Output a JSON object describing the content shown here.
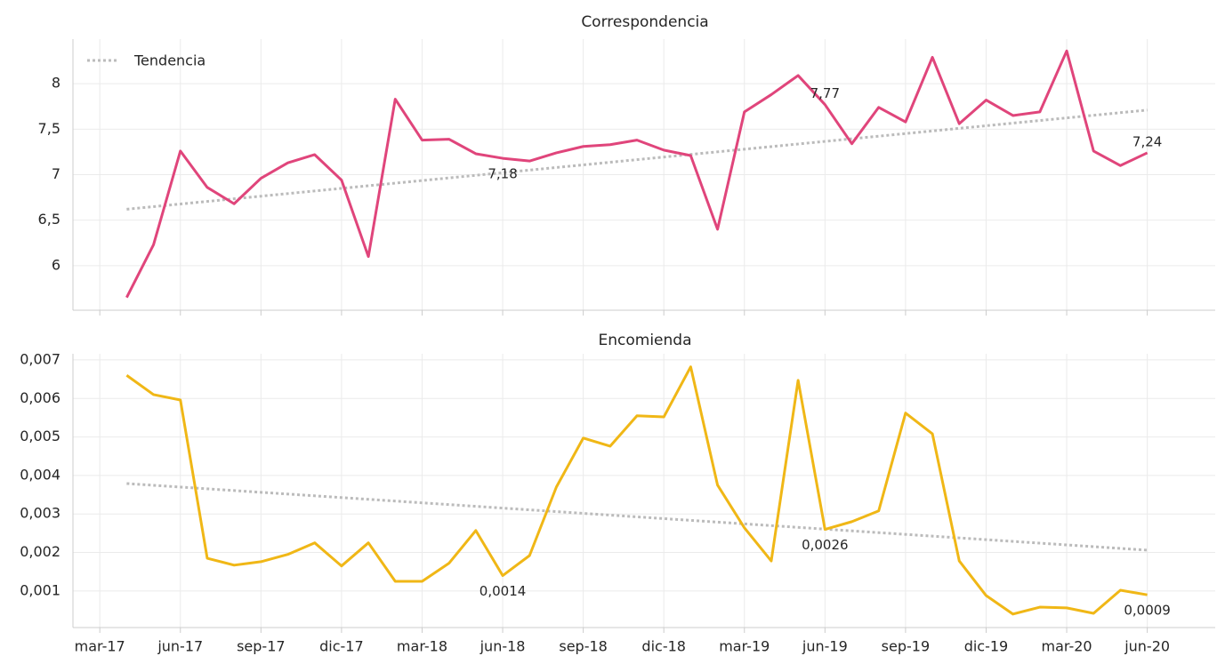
{
  "chart_data": [
    {
      "type": "line",
      "title": "Correspondencia",
      "x": [
        "2017-04",
        "2017-05",
        "2017-06",
        "2017-07",
        "2017-08",
        "2017-09",
        "2017-10",
        "2017-11",
        "2017-12",
        "2018-01",
        "2018-02",
        "2018-03",
        "2018-04",
        "2018-05",
        "2018-06",
        "2018-07",
        "2018-08",
        "2018-09",
        "2018-10",
        "2018-11",
        "2018-12",
        "2019-01",
        "2019-02",
        "2019-03",
        "2019-04",
        "2019-05",
        "2019-06",
        "2019-07",
        "2019-08",
        "2019-09",
        "2019-10",
        "2019-11",
        "2019-12",
        "2020-01",
        "2020-02",
        "2020-03",
        "2020-04",
        "2020-05",
        "2020-06"
      ],
      "series": [
        {
          "color": "#e0457b",
          "values": [
            5.65,
            6.23,
            7.26,
            6.86,
            6.68,
            6.96,
            7.13,
            7.22,
            6.94,
            6.1,
            7.83,
            7.38,
            7.39,
            7.23,
            7.18,
            7.15,
            7.24,
            7.31,
            7.33,
            7.38,
            7.27,
            7.21,
            6.4,
            7.69,
            7.88,
            8.09,
            7.77,
            7.34,
            7.74,
            7.58,
            8.29,
            7.56,
            7.82,
            7.65,
            7.69,
            8.36,
            7.26,
            7.1,
            7.24
          ],
          "value_labels": [
            null,
            null,
            null,
            null,
            null,
            null,
            null,
            null,
            null,
            null,
            null,
            null,
            null,
            null,
            "7,18",
            null,
            null,
            null,
            null,
            null,
            null,
            null,
            null,
            null,
            null,
            null,
            "7,77",
            null,
            null,
            null,
            null,
            null,
            null,
            null,
            null,
            null,
            null,
            null,
            "7,24"
          ]
        }
      ],
      "trend": {
        "name": "Tendencia",
        "color": "#bbbbbb",
        "x": [
          "2017-04",
          "2020-06"
        ],
        "values": [
          6.62,
          7.71
        ]
      },
      "xlim": [
        "2017-02",
        "2020-08"
      ],
      "xticks": [
        "2017-03",
        "2017-06",
        "2017-09",
        "2017-12",
        "2018-03",
        "2018-06",
        "2018-09",
        "2018-12",
        "2019-03",
        "2019-06",
        "2019-09",
        "2019-12",
        "2020-03",
        "2020-06"
      ],
      "ylim": [
        5.51,
        8.49
      ],
      "yticks": [
        6,
        {
          "value": 6.5,
          "label": "6,5"
        },
        7,
        {
          "value": 7.5,
          "label": "7,5"
        },
        8
      ],
      "grid": true,
      "legend": "upper left"
    },
    {
      "type": "line",
      "title": "Encomienda",
      "x": [
        "2017-04",
        "2017-05",
        "2017-06",
        "2017-07",
        "2017-08",
        "2017-09",
        "2017-10",
        "2017-11",
        "2017-12",
        "2018-01",
        "2018-02",
        "2018-03",
        "2018-04",
        "2018-05",
        "2018-06",
        "2018-07",
        "2018-08",
        "2018-09",
        "2018-10",
        "2018-11",
        "2018-12",
        "2019-01",
        "2019-02",
        "2019-03",
        "2019-04",
        "2019-05",
        "2019-06",
        "2019-07",
        "2019-08",
        "2019-09",
        "2019-10",
        "2019-11",
        "2019-12",
        "2020-01",
        "2020-02",
        "2020-03",
        "2020-04",
        "2020-05",
        "2020-06"
      ],
      "series": [
        {
          "color": "#f0b716",
          "values": [
            0.0066,
            0.0061,
            0.00596,
            0.00185,
            0.00167,
            0.00176,
            0.00195,
            0.00225,
            0.00165,
            0.00225,
            0.00125,
            0.00125,
            0.00172,
            0.00257,
            0.0014,
            0.00192,
            0.0037,
            0.00497,
            0.00476,
            0.00555,
            0.00552,
            0.00682,
            0.00375,
            0.00264,
            0.00178,
            0.00647,
            0.0026,
            0.0028,
            0.00308,
            0.00562,
            0.00508,
            0.00178,
            0.00088,
            0.0004,
            0.00058,
            0.00056,
            0.00042,
            0.00102,
            0.0009
          ],
          "value_labels": [
            null,
            null,
            null,
            null,
            null,
            null,
            null,
            null,
            null,
            null,
            null,
            null,
            null,
            null,
            "0,0014",
            null,
            null,
            null,
            null,
            null,
            null,
            null,
            null,
            null,
            null,
            null,
            "0,0026",
            null,
            null,
            null,
            null,
            null,
            null,
            null,
            null,
            null,
            null,
            null,
            "0,0009"
          ]
        }
      ],
      "trend": {
        "color": "#bbbbbb",
        "x": [
          "2017-04",
          "2020-06"
        ],
        "values": [
          0.00379,
          0.00206
        ]
      },
      "xlim": [
        "2017-02",
        "2020-08"
      ],
      "xticks": [
        {
          "value": "2017-03",
          "label": "mar-17"
        },
        {
          "value": "2017-06",
          "label": "jun-17"
        },
        {
          "value": "2017-09",
          "label": "sep-17"
        },
        {
          "value": "2017-12",
          "label": "dic-17"
        },
        {
          "value": "2018-03",
          "label": "mar-18"
        },
        {
          "value": "2018-06",
          "label": "jun-18"
        },
        {
          "value": "2018-09",
          "label": "sep-18"
        },
        {
          "value": "2018-12",
          "label": "dic-18"
        },
        {
          "value": "2019-03",
          "label": "mar-19"
        },
        {
          "value": "2019-06",
          "label": "jun-19"
        },
        {
          "value": "2019-09",
          "label": "sep-19"
        },
        {
          "value": "2019-12",
          "label": "dic-19"
        },
        {
          "value": "2020-03",
          "label": "mar-20"
        },
        {
          "value": "2020-06",
          "label": "jun-20"
        }
      ],
      "ylim": [
        5e-05,
        0.00716
      ],
      "yticks": [
        {
          "value": 0.001,
          "label": "0,001"
        },
        {
          "value": 0.002,
          "label": "0,002"
        },
        {
          "value": 0.003,
          "label": "0,003"
        },
        {
          "value": 0.004,
          "label": "0,004"
        },
        {
          "value": 0.005,
          "label": "0,005"
        },
        {
          "value": 0.006,
          "label": "0,006"
        },
        {
          "value": 0.007,
          "label": "0,007"
        }
      ],
      "grid": true
    }
  ]
}
